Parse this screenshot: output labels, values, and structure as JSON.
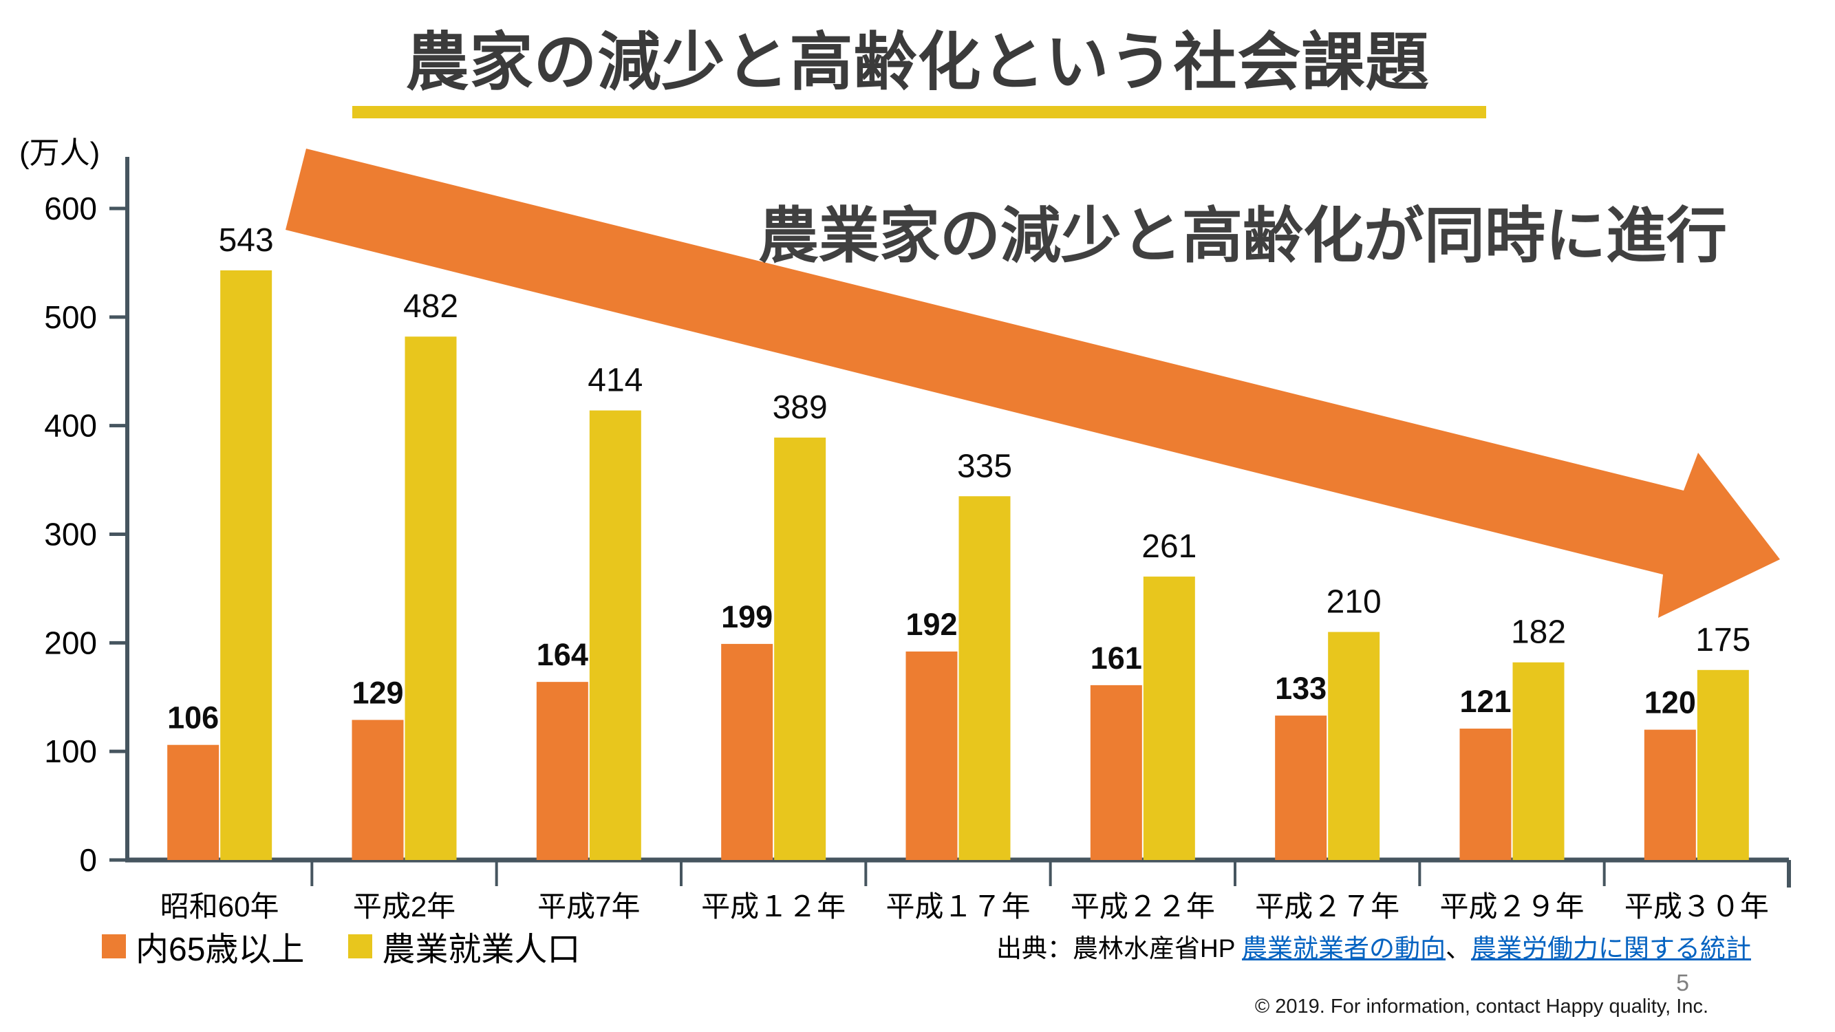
{
  "title": "農家の減少と高齢化という社会課題",
  "statement": "農業家の減少と高齢化が同時に進行",
  "unit_label": "(万人)",
  "legend": [
    {
      "label": "内65歳以上",
      "color": "#ED7D31"
    },
    {
      "label": "農業就業人口",
      "color": "#E8C61D"
    }
  ],
  "source": {
    "prefix": "出典：農林水産省HP ",
    "link1": "農業就業者の動向",
    "separator": "、",
    "link2": "農業労働力に関する統計"
  },
  "page_number": "5",
  "copyright": "© 2019. For information, contact Happy quality, Inc.",
  "colors": {
    "orange": "#ED7D31",
    "yellow": "#E8C61D",
    "arrow": "#ED7D31",
    "axis": "#46555F",
    "link_blue": "#0563C1",
    "underline_yellow": "#E8C61D"
  },
  "chart_data": {
    "type": "bar",
    "categories": [
      "昭和60年",
      "平成2年",
      "平成7年",
      "平成１２年",
      "平成１７年",
      "平成２２年",
      "平成２７年",
      "平成２９年",
      "平成３０年"
    ],
    "series": [
      {
        "name": "内65歳以上",
        "color": "#ED7D31",
        "values": [
          106,
          129,
          164,
          199,
          192,
          161,
          133,
          121,
          120
        ]
      },
      {
        "name": "農業就業人口",
        "color": "#E8C61D",
        "values": [
          543,
          482,
          414,
          389,
          335,
          261,
          210,
          182,
          175
        ]
      }
    ],
    "title": "農家の減少と高齢化という社会課題",
    "xlabel": "",
    "ylabel": "(万人)",
    "ylim": [
      0,
      600
    ],
    "yticks": [
      0,
      100,
      200,
      300,
      400,
      500,
      600
    ],
    "grid": false,
    "legend_position": "bottom-left"
  }
}
